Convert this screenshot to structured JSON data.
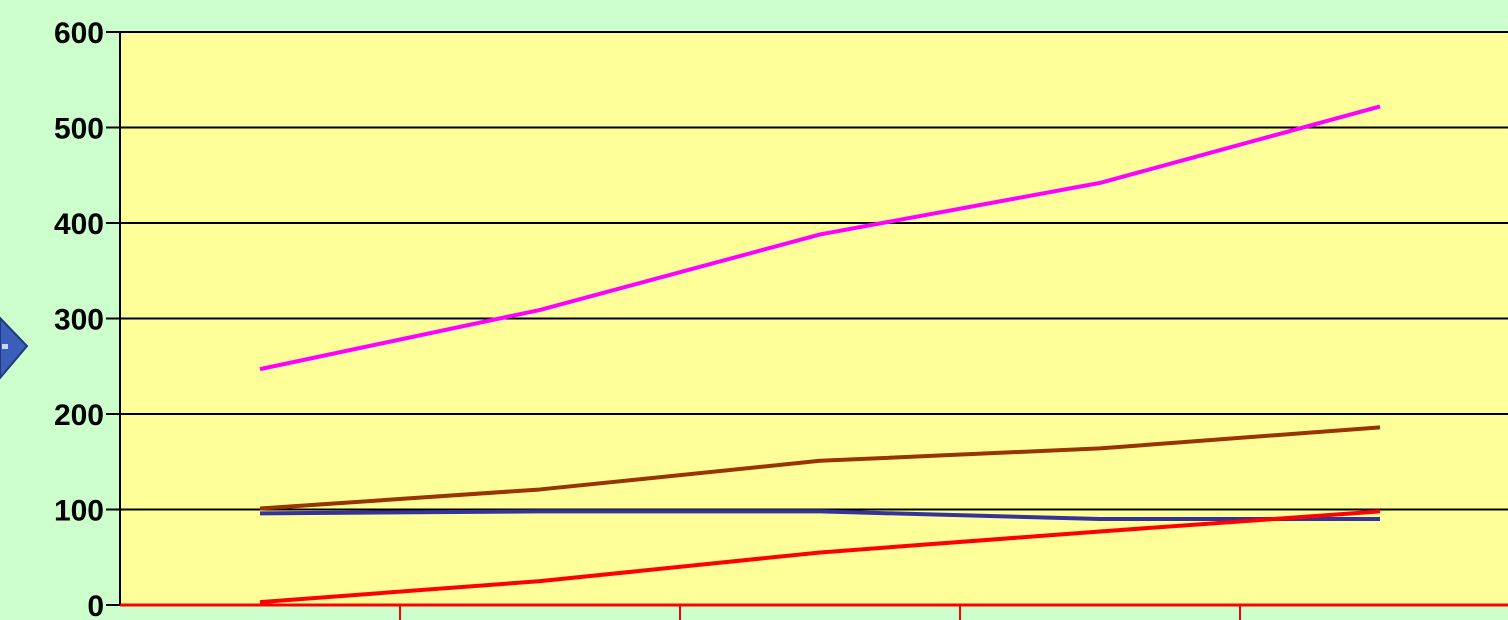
{
  "chart_data": {
    "type": "line",
    "title": "",
    "xlabel": "",
    "ylabel": "",
    "categories": [
      "",
      "",
      "",
      "",
      ""
    ],
    "ylim": [
      0,
      600
    ],
    "yticks": [
      "0",
      "100",
      "200",
      "300",
      "400",
      "500",
      "600"
    ],
    "grid": true,
    "legend": "none",
    "series": [
      {
        "color": "#ff00ff",
        "values": [
          247,
          309,
          388,
          442,
          522
        ]
      },
      {
        "color": "#993300",
        "values": [
          101,
          121,
          151,
          164,
          186
        ]
      },
      {
        "color": "#333399",
        "values": [
          96,
          98,
          98,
          90,
          90
        ]
      },
      {
        "color": "#ff0000",
        "values": [
          3,
          25,
          55,
          77,
          98
        ]
      }
    ]
  },
  "colors": {
    "page_background": "#ccffcc",
    "plot_background": "#ffff99",
    "gridline": "#000000",
    "x_axis": "#ff0000"
  },
  "icons": {
    "left_edge": "blue-diamond-icon"
  }
}
